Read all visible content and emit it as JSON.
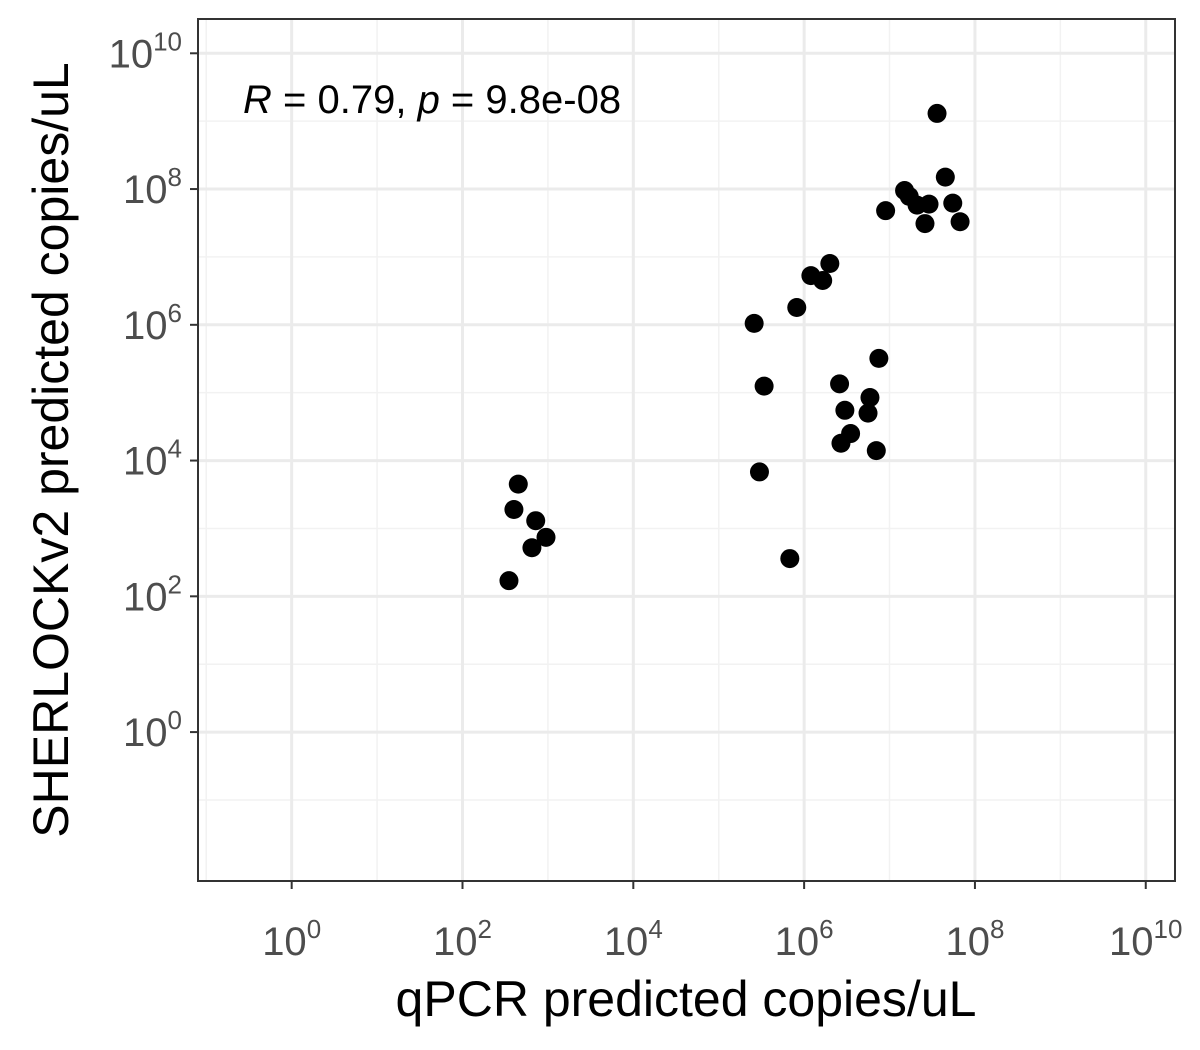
{
  "chart_data": {
    "type": "scatter",
    "x_scale": "log10",
    "y_scale": "log10",
    "xlabel": "qPCR predicted copies/uL",
    "ylabel": "SHERLOCKv2 predicted copies/uL",
    "xlim": [
      0.08,
      22000000000.0
    ],
    "ylim": [
      0.0064,
      32000000000.0
    ],
    "x_ticks": [
      1,
      100,
      10000,
      1000000,
      100000000,
      10000000000
    ],
    "y_ticks": [
      1,
      100,
      10000,
      1000000,
      100000000,
      10000000000
    ],
    "tick_label_base": "10",
    "x_tick_exponents": [
      "0",
      "2",
      "4",
      "6",
      "8",
      "10"
    ],
    "y_tick_exponents": [
      "0",
      "2",
      "4",
      "6",
      "8",
      "10"
    ],
    "grid": true,
    "legend": "none",
    "point_color": "#000000",
    "annotation": {
      "r_symbol": "R",
      "r_text": " = 0.79, ",
      "p_symbol": "p",
      "p_text": " = 9.8e-08",
      "position": "top-left"
    },
    "points": [
      {
        "x": 350,
        "y": 170
      },
      {
        "x": 400,
        "y": 1900
      },
      {
        "x": 450,
        "y": 4500
      },
      {
        "x": 650,
        "y": 520
      },
      {
        "x": 720,
        "y": 1300
      },
      {
        "x": 950,
        "y": 740
      },
      {
        "x": 260000,
        "y": 1050000
      },
      {
        "x": 300000,
        "y": 6800
      },
      {
        "x": 340000,
        "y": 125000
      },
      {
        "x": 680000,
        "y": 360
      },
      {
        "x": 820000,
        "y": 1800000
      },
      {
        "x": 1200000,
        "y": 5300000
      },
      {
        "x": 1650000,
        "y": 4500000
      },
      {
        "x": 2000000,
        "y": 8000000
      },
      {
        "x": 2600000,
        "y": 135000
      },
      {
        "x": 2700000,
        "y": 18000
      },
      {
        "x": 3000000,
        "y": 55000
      },
      {
        "x": 3500000,
        "y": 25000
      },
      {
        "x": 5600000,
        "y": 50000
      },
      {
        "x": 5900000,
        "y": 85000
      },
      {
        "x": 7000000,
        "y": 14000
      },
      {
        "x": 7500000,
        "y": 320000
      },
      {
        "x": 9000000,
        "y": 48000000
      },
      {
        "x": 15000000,
        "y": 95000000
      },
      {
        "x": 17000000,
        "y": 78000000
      },
      {
        "x": 21000000,
        "y": 58000000
      },
      {
        "x": 26000000,
        "y": 31000000
      },
      {
        "x": 29000000,
        "y": 60000000
      },
      {
        "x": 36000000,
        "y": 1300000000
      },
      {
        "x": 45000000,
        "y": 150000000
      },
      {
        "x": 55000000,
        "y": 62000000
      },
      {
        "x": 67000000,
        "y": 33000000
      }
    ]
  }
}
